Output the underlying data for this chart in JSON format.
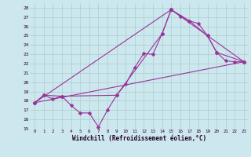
{
  "xlabel": "Windchill (Refroidissement éolien,°C)",
  "background_color": "#cce8ee",
  "grid_color": "#aacccc",
  "line_color": "#993399",
  "ylim": [
    15,
    28.5
  ],
  "xlim": [
    -0.5,
    23.5
  ],
  "yticks": [
    15,
    16,
    17,
    18,
    19,
    20,
    21,
    22,
    23,
    24,
    25,
    26,
    27,
    28
  ],
  "xticks": [
    0,
    1,
    2,
    3,
    4,
    5,
    6,
    7,
    8,
    9,
    10,
    11,
    12,
    13,
    14,
    15,
    16,
    17,
    18,
    19,
    20,
    21,
    22,
    23
  ],
  "series": [
    {
      "x": [
        0,
        1,
        2,
        3,
        4,
        5,
        6,
        7,
        8,
        9,
        10,
        11,
        12,
        13,
        14,
        15,
        16,
        17,
        18,
        19,
        20,
        21,
        22,
        23
      ],
      "y": [
        17.8,
        18.6,
        18.2,
        18.5,
        17.5,
        16.7,
        16.7,
        15.2,
        17.0,
        18.6,
        19.8,
        21.6,
        23.1,
        23.0,
        25.2,
        27.8,
        27.1,
        26.6,
        26.3,
        25.0,
        23.2,
        22.3,
        22.2,
        22.2
      ],
      "marker": "D",
      "markersize": 2.5,
      "linewidth": 0.8
    },
    {
      "x": [
        0,
        23
      ],
      "y": [
        17.8,
        22.2
      ],
      "marker": null,
      "markersize": 0,
      "linewidth": 0.8
    },
    {
      "x": [
        0,
        15,
        23
      ],
      "y": [
        17.8,
        27.8,
        22.2
      ],
      "marker": "D",
      "markersize": 2.5,
      "linewidth": 0.8
    },
    {
      "x": [
        0,
        1,
        3,
        9,
        14,
        15,
        17,
        19,
        20,
        23
      ],
      "y": [
        17.8,
        18.6,
        18.5,
        18.6,
        25.2,
        27.8,
        26.6,
        25.0,
        23.2,
        22.2
      ],
      "marker": "D",
      "markersize": 2.5,
      "linewidth": 0.8
    }
  ]
}
